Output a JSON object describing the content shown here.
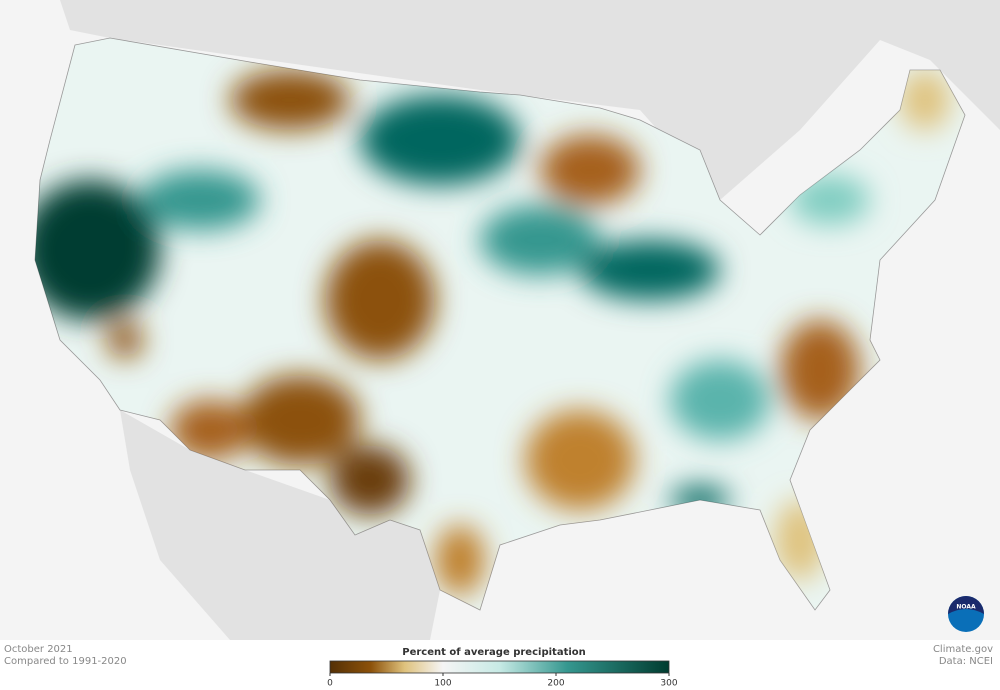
{
  "caption": {
    "date": "October 2021",
    "baseline": "Compared to 1991-2020"
  },
  "credits": {
    "site": "Climate.gov",
    "source": "Data: NCEI",
    "logo": "NOAA"
  },
  "legend": {
    "title": "Percent of average precipitation",
    "range": [
      0,
      300
    ],
    "ticks": [
      0,
      100,
      200,
      300
    ]
  }
}
